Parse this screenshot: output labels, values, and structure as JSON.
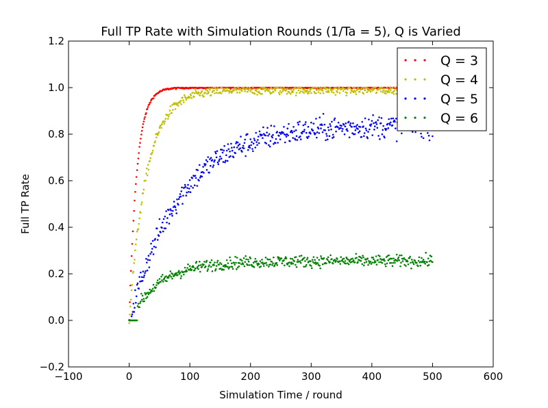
{
  "chart_data": {
    "type": "scatter",
    "title": "Full TP Rate with Simulation Rounds (1/Ta = 5), Q is Varied",
    "xlabel": "Simulation Time / round",
    "ylabel": "Full TP Rate",
    "xlim": [
      -100,
      600
    ],
    "ylim": [
      -0.2,
      1.2
    ],
    "xticks": [
      -100,
      0,
      100,
      200,
      300,
      400,
      500,
      600
    ],
    "yticks": [
      -0.2,
      0.0,
      0.2,
      0.4,
      0.6,
      0.8,
      1.0,
      1.2
    ],
    "xtick_labels": [
      "−100",
      "0",
      "100",
      "200",
      "300",
      "400",
      "500",
      "600"
    ],
    "ytick_labels": [
      "−0.2",
      "0.0",
      "0.2",
      "0.4",
      "0.6",
      "0.8",
      "1.0",
      "1.2"
    ],
    "grid": false,
    "legend_position": "top-right",
    "series": [
      {
        "name": "Q = 3",
        "color": "#ff0000",
        "x_range": [
          0,
          500
        ],
        "approx_trend": {
          "start": 0.0,
          "plateau": 1.0,
          "rate": 0.08,
          "noise": 0.004
        }
      },
      {
        "name": "Q = 4",
        "color": "#bfbf00",
        "x_range": [
          0,
          500
        ],
        "approx_trend": {
          "start": 0.0,
          "plateau": 0.99,
          "rate": 0.035,
          "noise": 0.02
        }
      },
      {
        "name": "Q = 5",
        "color": "#0000ff",
        "x_range": [
          0,
          500
        ],
        "approx_trend": {
          "start": 0.0,
          "plateau": 0.84,
          "rate": 0.012,
          "noise": 0.05
        }
      },
      {
        "name": "Q = 6",
        "color": "#008000",
        "x_range": [
          0,
          500
        ],
        "approx_trend": {
          "start": 0.0,
          "plateau": 0.255,
          "rate": 0.02,
          "noise": 0.025
        }
      }
    ]
  }
}
